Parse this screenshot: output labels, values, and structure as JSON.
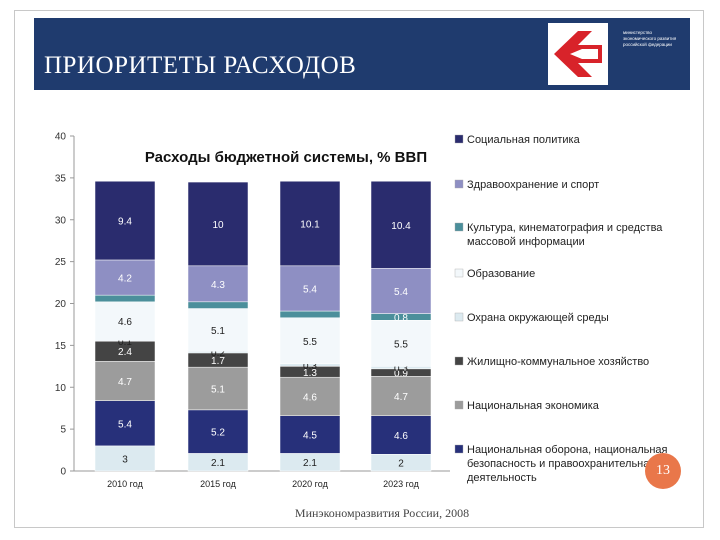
{
  "header": {
    "title": "ПРИОРИТЕТЫ РАСХОДОВ",
    "logo_text": "министерство экономического развития российской федерации"
  },
  "page_number": "13",
  "source": "Минэкономразвития России, 2008",
  "colors": {
    "header_bg": "#1f3b6e",
    "accent_red": "#d8232a",
    "page_badge": "#e9774a"
  },
  "chart_data": {
    "type": "stacked-bar",
    "title": "Расходы бюджетной системы, % ВВП",
    "categories": [
      "2010 год",
      "2015 год",
      "2020 год",
      "2023 год"
    ],
    "ylim": [
      0,
      40
    ],
    "yticks": [
      0,
      5,
      10,
      15,
      20,
      25,
      30,
      35,
      40
    ],
    "legend_position": "right",
    "series": [
      {
        "name": "Национальная оборона, национальная безопасность и правоохранительная деятельность",
        "color": "#dceaf0",
        "values": [
          3,
          2.1,
          2.1,
          2
        ]
      },
      {
        "name": "Национальная экономика",
        "color": "#27307a",
        "values": [
          5.4,
          5.2,
          4.5,
          4.6
        ]
      },
      {
        "name": "Жилищно-коммунальное хозяйство",
        "color": "#9c9c9c",
        "values": [
          4.7,
          5.1,
          4.6,
          4.7
        ]
      },
      {
        "name": "Охрана окружающей среды",
        "color": "#444444",
        "values": [
          2.4,
          1.7,
          1.3,
          0.9
        ]
      },
      {
        "name": "Образование",
        "color": "#dceaf0",
        "values": [
          0.1,
          0.2,
          0.3,
          0.3
        ]
      },
      {
        "name": "Культура, кинематография и средства массовой информации",
        "color": "#f3f8fb",
        "values": [
          4.6,
          5.1,
          5.5,
          5.5
        ]
      },
      {
        "name": "Здравоохранение и спорт",
        "color": "#4b8f9b",
        "values": [
          0.8,
          0.8,
          0.8,
          0.8
        ]
      },
      {
        "name": "Социальная политика",
        "color": "#8e8fc3",
        "values": [
          4.2,
          4.3,
          5.4,
          5.4
        ]
      },
      {
        "name": "Национальная оборона, национальная безопасность и правоохранительная деятельность",
        "color": "#2a2c6e",
        "values": [
          9.4,
          10,
          10.1,
          10.4
        ]
      }
    ],
    "data_labels": [
      [
        "3",
        "5.4",
        "4.7",
        "2.4",
        "0.1",
        "4.6",
        "",
        "4.2",
        "9.4"
      ],
      [
        "2.1",
        "5.2",
        "5.1",
        "1.7",
        "0.2",
        "5.1",
        "",
        "4.3",
        "10"
      ],
      [
        "2.1",
        "4.5",
        "4.6",
        "1.3",
        "0.3",
        "5.5",
        "",
        "5.4",
        "10.1"
      ],
      [
        "2",
        "4.6",
        "4.7",
        "0.9",
        "0.3",
        "5.5",
        "0.8",
        "5.4",
        "10.4"
      ]
    ],
    "legend": [
      {
        "label": "Социальная политика",
        "color": "#2a2c6e"
      },
      {
        "label": "Здравоохранение и спорт",
        "color": "#8e8fc3"
      },
      {
        "label": "Культура, кинематография и средства массовой информации",
        "color": "#4b8f9b"
      },
      {
        "label": "Образование",
        "color": "#f3f8fb"
      },
      {
        "label": "Охрана окружающей среды",
        "color": "#dceaf0"
      },
      {
        "label": "Жилищно-коммунальное хозяйство",
        "color": "#444444"
      },
      {
        "label": "Национальная экономика",
        "color": "#9c9c9c"
      },
      {
        "label": "Национальная оборона, национальная безопасность и правоохранительная деятельность",
        "color": "#27307a"
      }
    ]
  }
}
